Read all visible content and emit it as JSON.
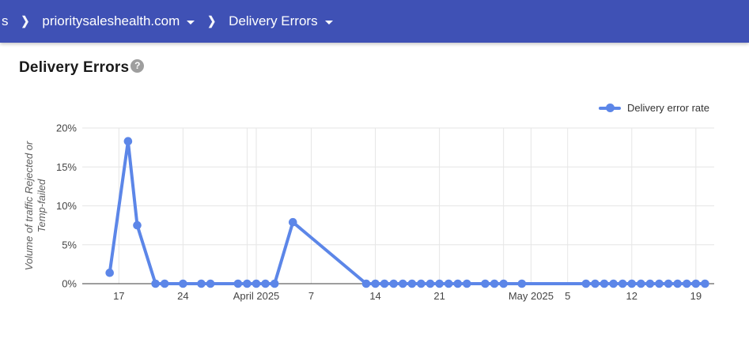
{
  "header": {
    "bg_color": "#3f51b5",
    "breadcrumb_fragment": "s",
    "separator": "❯",
    "domain_menu_label": "prioritysaleshealth.com",
    "page_menu_label": "Delivery Errors"
  },
  "page": {
    "title": "Delivery Errors",
    "help_icon_glyph": "?"
  },
  "legend": {
    "label": "Delivery error rate",
    "color": "#5c86e8"
  },
  "chart_data": {
    "type": "line",
    "title": "Delivery Errors",
    "series": [
      {
        "name": "Delivery error rate",
        "color": "#5c86e8",
        "points": [
          [
            "2025-03-16",
            1.4
          ],
          [
            "2025-03-18",
            18.3
          ],
          [
            "2025-03-19",
            7.5
          ],
          [
            "2025-03-21",
            0
          ],
          [
            "2025-03-22",
            0
          ],
          [
            "2025-03-24",
            0
          ],
          [
            "2025-03-26",
            0
          ],
          [
            "2025-03-27",
            0
          ],
          [
            "2025-03-30",
            0
          ],
          [
            "2025-03-31",
            0
          ],
          [
            "2025-04-01",
            0
          ],
          [
            "2025-04-02",
            0
          ],
          [
            "2025-04-03",
            0
          ],
          [
            "2025-04-05",
            7.9
          ],
          [
            "2025-04-13",
            0
          ],
          [
            "2025-04-14",
            0
          ],
          [
            "2025-04-15",
            0
          ],
          [
            "2025-04-16",
            0
          ],
          [
            "2025-04-17",
            0
          ],
          [
            "2025-04-18",
            0
          ],
          [
            "2025-04-19",
            0
          ],
          [
            "2025-04-20",
            0
          ],
          [
            "2025-04-21",
            0
          ],
          [
            "2025-04-22",
            0
          ],
          [
            "2025-04-23",
            0
          ],
          [
            "2025-04-24",
            0
          ],
          [
            "2025-04-26",
            0
          ],
          [
            "2025-04-27",
            0
          ],
          [
            "2025-04-28",
            0
          ],
          [
            "2025-04-30",
            0
          ],
          [
            "2025-05-07",
            0
          ],
          [
            "2025-05-08",
            0
          ],
          [
            "2025-05-09",
            0
          ],
          [
            "2025-05-10",
            0
          ],
          [
            "2025-05-11",
            0
          ],
          [
            "2025-05-12",
            0
          ],
          [
            "2025-05-13",
            0
          ],
          [
            "2025-05-14",
            0
          ],
          [
            "2025-05-15",
            0
          ],
          [
            "2025-05-16",
            0
          ],
          [
            "2025-05-17",
            0
          ],
          [
            "2025-05-18",
            0
          ],
          [
            "2025-05-19",
            0
          ],
          [
            "2025-05-20",
            0
          ]
        ]
      }
    ],
    "xlabel": "",
    "ylabel": "Volume of traffic Rejected or Temp-failed",
    "ylabel_lines": [
      "Volume of traffic Rejected or",
      "Temp-failed"
    ],
    "ylim": [
      0,
      20
    ],
    "y_ticks": [
      {
        "value": 0,
        "label": "0%"
      },
      {
        "value": 5,
        "label": "5%"
      },
      {
        "value": 10,
        "label": "10%"
      },
      {
        "value": 15,
        "label": "15%"
      },
      {
        "value": 20,
        "label": "20%"
      }
    ],
    "x_domain": [
      "2025-03-13",
      "2025-05-21"
    ],
    "x_ticks": [
      {
        "date": "2025-03-17",
        "label": "17"
      },
      {
        "date": "2025-03-24",
        "label": "24"
      },
      {
        "date": "2025-03-31",
        "label": ""
      },
      {
        "date": "2025-04-01",
        "label": "April 2025"
      },
      {
        "date": "2025-04-07",
        "label": "7"
      },
      {
        "date": "2025-04-14",
        "label": "14"
      },
      {
        "date": "2025-04-21",
        "label": "21"
      },
      {
        "date": "2025-04-28",
        "label": ""
      },
      {
        "date": "2025-05-01",
        "label": "May 2025"
      },
      {
        "date": "2025-05-05",
        "label": "5"
      },
      {
        "date": "2025-05-12",
        "label": "12"
      },
      {
        "date": "2025-05-19",
        "label": "19"
      }
    ],
    "grid": true,
    "legend_position": "top-right",
    "colors": {
      "gridline": "#e6e6e6",
      "zero_line": "#3c3c3c",
      "tick_text": "#454545"
    }
  }
}
